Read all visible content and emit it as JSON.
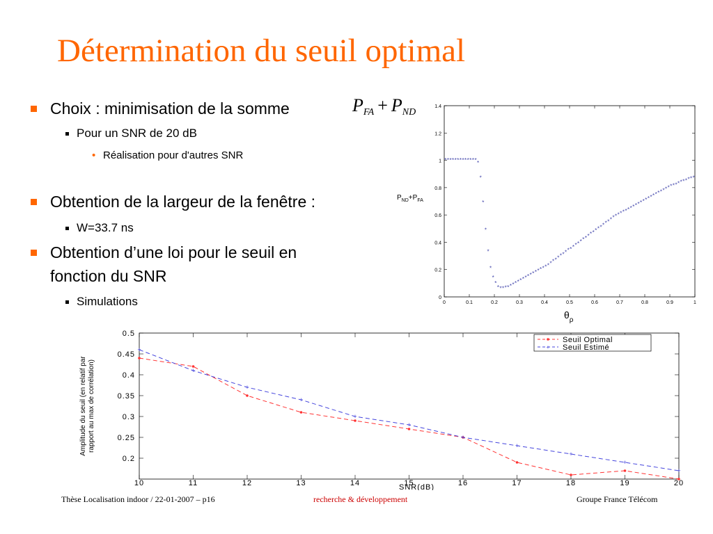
{
  "slide": {
    "title": "Détermination du seuil optimal",
    "accent_color": "#ff6600"
  },
  "bullets": {
    "b1": "Choix : minimisation de la somme",
    "b1_formula": {
      "p1": "P",
      "s1": "FA",
      "op": "+",
      "p2": "P",
      "s2": "ND"
    },
    "b1_sub": "Pour un SNR de 20 dB",
    "b1_subsub": "Réalisation pour d'autres SNR",
    "b2": "Obtention de la largeur de la fenêtre :",
    "b2_sub": "W=33.7 ns",
    "b3_line1": "Obtention d’une loi pour le seuil en",
    "b3_line2": "fonction du SNR",
    "b3_sub": "Simulations",
    "bullet_glyph": "•"
  },
  "footer": {
    "left": "Thèse Localisation indoor / 22-01-2007 –  p16",
    "center": "recherche & développement",
    "right": "Groupe France Télécom",
    "center_color": "#cc0000"
  },
  "chart_data": [
    {
      "type": "scatter",
      "ylabel_parts": {
        "p1": "P",
        "s1": "ND",
        "mid": "+P",
        "s2": "FA"
      },
      "xlabel_parts": {
        "main": "θ",
        "sub": "ρ"
      },
      "xlim": [
        0,
        1
      ],
      "ylim": [
        0,
        1.4
      ],
      "xticks": [
        "0",
        "0.1",
        "0.2",
        "0.3",
        "0.4",
        "0.5",
        "0.6",
        "0.7",
        "0.8",
        "0.9",
        "1"
      ],
      "yticks": [
        "0",
        "0.2",
        "0.4",
        "0.6",
        "0.8",
        "1",
        "1.2",
        "1.4"
      ],
      "marker_color": "#3b3fa8",
      "series": [
        {
          "x": [
            0.005,
            0.015,
            0.025,
            0.035,
            0.045,
            0.055,
            0.065,
            0.075,
            0.085,
            0.095,
            0.105,
            0.115,
            0.125,
            0.135,
            0.145,
            0.155,
            0.165,
            0.175,
            0.185,
            0.195,
            0.205,
            0.215,
            0.225,
            0.235,
            0.245,
            0.255,
            0.265,
            0.275,
            0.285,
            0.295,
            0.305,
            0.315,
            0.325,
            0.335,
            0.345,
            0.355,
            0.365,
            0.375,
            0.385,
            0.395,
            0.405,
            0.415,
            0.425,
            0.435,
            0.445,
            0.455,
            0.465,
            0.475,
            0.485,
            0.495,
            0.505,
            0.515,
            0.525,
            0.535,
            0.545,
            0.555,
            0.565,
            0.575,
            0.585,
            0.595,
            0.605,
            0.615,
            0.625,
            0.635,
            0.645,
            0.655,
            0.665,
            0.675,
            0.685,
            0.695,
            0.705,
            0.715,
            0.725,
            0.735,
            0.745,
            0.755,
            0.765,
            0.775,
            0.785,
            0.795,
            0.805,
            0.815,
            0.825,
            0.835,
            0.845,
            0.855,
            0.865,
            0.875,
            0.885,
            0.895,
            0.905,
            0.915,
            0.925,
            0.935,
            0.945,
            0.955,
            0.965,
            0.975,
            0.985,
            0.995
          ],
          "y": [
            1.0,
            1.0,
            1.0,
            1.0,
            1.0,
            1.0,
            1.0,
            1.0,
            1.0,
            1.0,
            1.0,
            1.0,
            1.0,
            0.98,
            0.87,
            0.69,
            0.49,
            0.33,
            0.21,
            0.14,
            0.1,
            0.07,
            0.06,
            0.06,
            0.065,
            0.07,
            0.08,
            0.09,
            0.1,
            0.11,
            0.12,
            0.13,
            0.14,
            0.15,
            0.16,
            0.17,
            0.18,
            0.19,
            0.2,
            0.21,
            0.22,
            0.23,
            0.245,
            0.26,
            0.27,
            0.285,
            0.3,
            0.31,
            0.325,
            0.34,
            0.35,
            0.365,
            0.38,
            0.39,
            0.405,
            0.42,
            0.43,
            0.445,
            0.46,
            0.47,
            0.485,
            0.5,
            0.51,
            0.525,
            0.54,
            0.55,
            0.565,
            0.58,
            0.59,
            0.6,
            0.61,
            0.62,
            0.63,
            0.64,
            0.65,
            0.66,
            0.67,
            0.68,
            0.69,
            0.7,
            0.71,
            0.72,
            0.73,
            0.74,
            0.75,
            0.76,
            0.77,
            0.78,
            0.79,
            0.8,
            0.81,
            0.815,
            0.82,
            0.83,
            0.84,
            0.845,
            0.85,
            0.86,
            0.865,
            0.87
          ]
        }
      ]
    },
    {
      "type": "line",
      "xlabel": "SNR(dB)",
      "ylabel_line1": "Amplitude du seuil (en relatif par",
      "ylabel_line2": "rapport au max de corrélation)",
      "xlim": [
        10,
        20
      ],
      "ylim": [
        0.15,
        0.5
      ],
      "x": [
        10,
        11,
        12,
        13,
        14,
        15,
        16,
        17,
        18,
        19,
        20
      ],
      "xticks": [
        "10",
        "11",
        "12",
        "13",
        "14",
        "15",
        "16",
        "17",
        "18",
        "19",
        "20"
      ],
      "yticks": [
        "0.2",
        "0.25",
        "0.3",
        "0.35",
        "0.4",
        "0.45",
        "0.5"
      ],
      "legend_position": "top-right",
      "series": [
        {
          "name": "Seuil Optimal",
          "color": "#ff3333",
          "marker": "dot",
          "values": [
            0.44,
            0.42,
            0.35,
            0.31,
            0.29,
            0.27,
            0.25,
            0.19,
            0.16,
            0.17,
            0.15
          ]
        },
        {
          "name": "Seuil Estimé",
          "color": "#4444dd",
          "marker": "plus",
          "values": [
            0.46,
            0.41,
            0.37,
            0.34,
            0.3,
            0.28,
            0.25,
            0.23,
            0.21,
            0.19,
            0.17
          ]
        }
      ]
    }
  ]
}
